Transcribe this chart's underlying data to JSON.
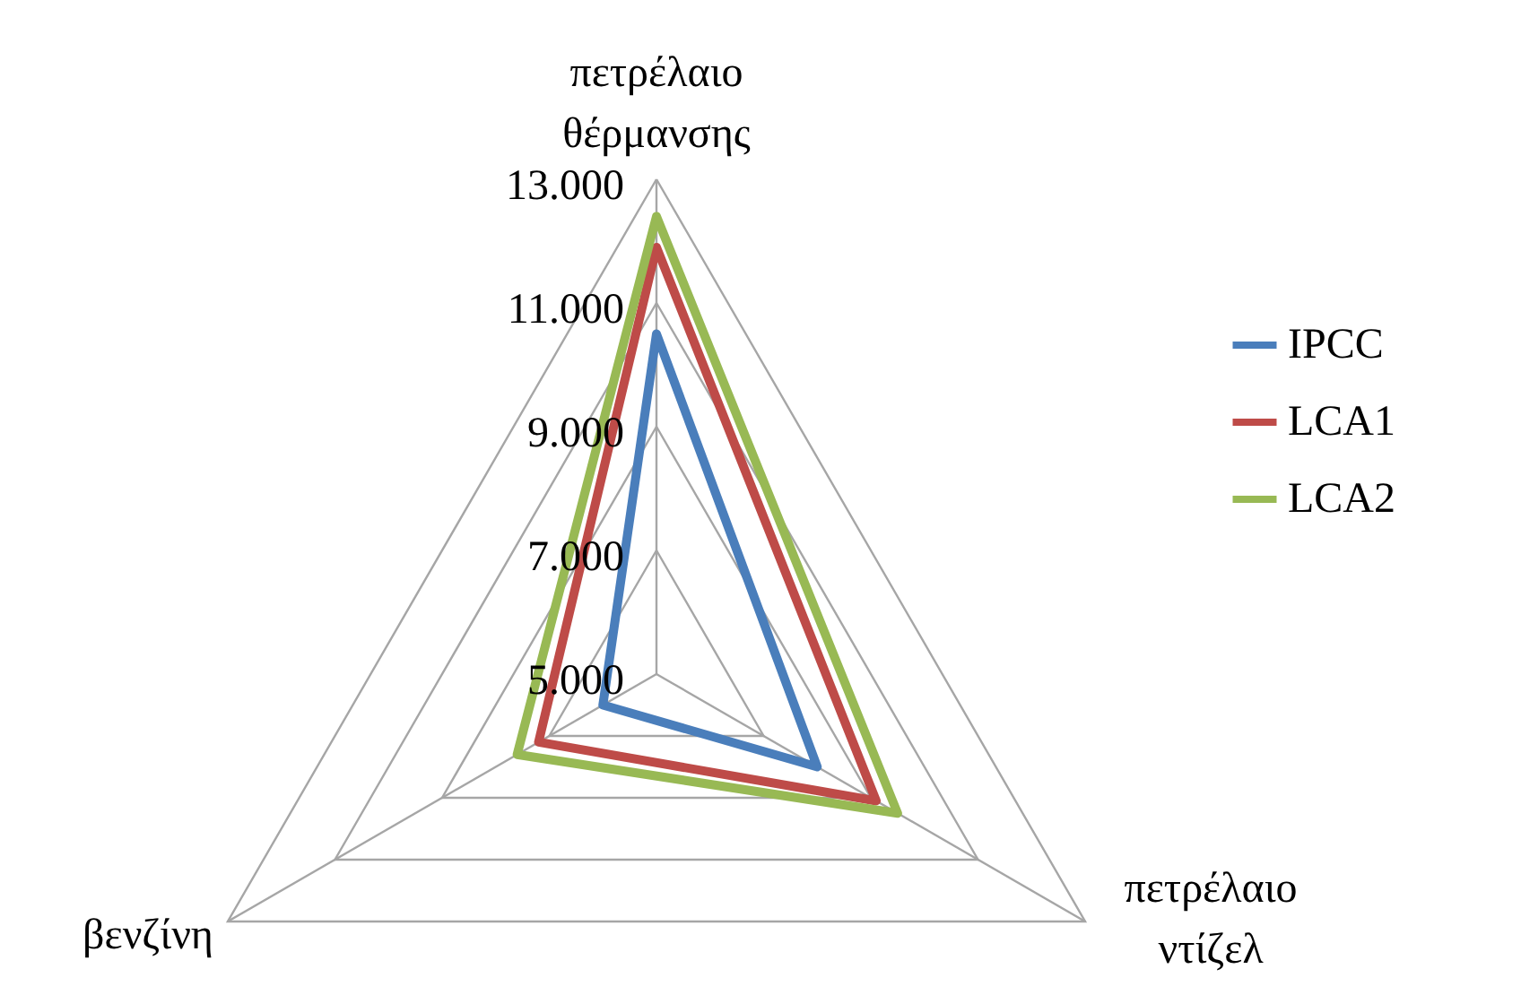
{
  "chart_data": {
    "type": "radar",
    "categories": [
      "πετρέλαιο θέρμανσης",
      "πετρέλαιο ντίζελ",
      "βενζίνη"
    ],
    "series": [
      {
        "name": "IPCC",
        "color": "#4a7ebb",
        "values": [
          10500,
          8000,
          6000
        ]
      },
      {
        "name": "LCA1",
        "color": "#be4b48",
        "values": [
          11900,
          9100,
          7200
        ]
      },
      {
        "name": "LCA2",
        "color": "#98b954",
        "values": [
          12400,
          9500,
          7600
        ]
      }
    ],
    "ylim": [
      5000,
      13000
    ],
    "yticks": [
      {
        "value": 5000,
        "label": "5.000"
      },
      {
        "value": 7000,
        "label": "7.000"
      },
      {
        "value": 9000,
        "label": "9.000"
      },
      {
        "value": 11000,
        "label": "11.000"
      },
      {
        "value": 13000,
        "label": "13.000"
      }
    ],
    "grid": true,
    "legend": "right"
  }
}
